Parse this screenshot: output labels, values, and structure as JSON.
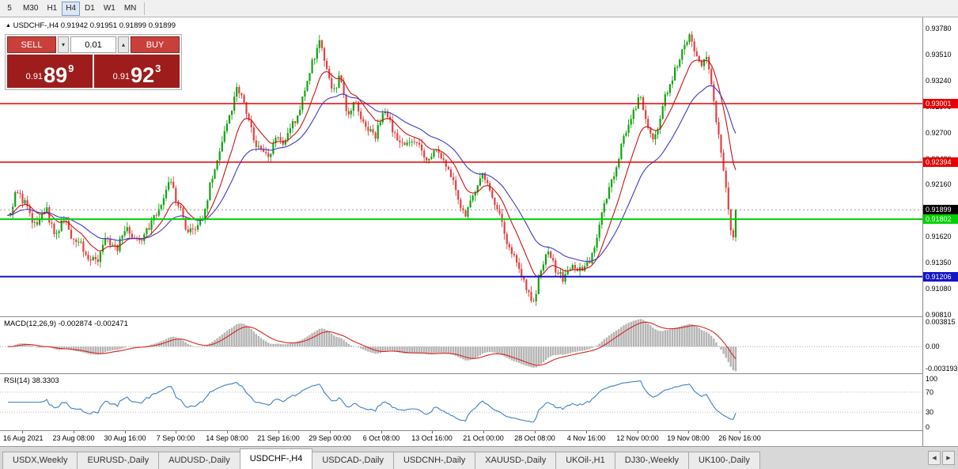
{
  "icons": {
    "collapse": "▲",
    "spinner_down": "▾",
    "spinner_up": "▴",
    "tabs_left": "◀",
    "tabs_right": "▶"
  },
  "toolbar": {
    "timeframes": [
      "5",
      "M30",
      "H1",
      "H4",
      "D1",
      "W1",
      "MN"
    ],
    "active_timeframe": "H4"
  },
  "chart": {
    "symbol_tf": "USDCHF-,H4",
    "ohlc": "0.91942 0.91951 0.91899 0.91899"
  },
  "trade_panel": {
    "sell_label": "SELL",
    "buy_label": "BUY",
    "lot_size": "0.01",
    "sell_price": {
      "prefix": "0.91",
      "big": "89",
      "sup": "9"
    },
    "buy_price": {
      "prefix": "0.91",
      "big": "92",
      "sup": "3"
    }
  },
  "price_axis": [
    "0.93780",
    "0.93510",
    "0.93240",
    "0.92970",
    "0.92700",
    "0.92430",
    "0.92160",
    "0.91890",
    "0.91620",
    "0.91350",
    "0.91080",
    "0.90810"
  ],
  "hlines": [
    {
      "label": "0.93001",
      "price": 0.93001,
      "color": "#e80000",
      "width": 1.5
    },
    {
      "label": "0.92394",
      "price": 0.92394,
      "color": "#e80000",
      "width": 1.5
    },
    {
      "label": "0.91802",
      "price": 0.91802,
      "color": "#00d200",
      "width": 2
    },
    {
      "label": "0.91206",
      "price": 0.91206,
      "color": "#1414c8",
      "width": 2
    }
  ],
  "current_price": {
    "label": "0.91899",
    "price": 0.91899,
    "color": "#000000"
  },
  "macd_panel": {
    "label": "MACD(12,26,9) -0.002874 -0.002471",
    "axis_labels": {
      "top": "0.003815",
      "zero": "0.00",
      "bottom": "-0.003193"
    }
  },
  "rsi_panel": {
    "label": "RSI(14) 38.3303",
    "axis_labels": [
      {
        "value": 100,
        "text": "100"
      },
      {
        "value": 70,
        "text": "70"
      },
      {
        "value": 30,
        "text": "30"
      },
      {
        "value": 0,
        "text": "0"
      }
    ],
    "levels": [
      70,
      30
    ]
  },
  "time_axis": [
    "16 Aug 2021",
    "23 Aug 08:00",
    "30 Aug 16:00",
    "7 Sep 00:00",
    "14 Sep 08:00",
    "21 Sep 16:00",
    "29 Sep 00:00",
    "6 Oct 08:00",
    "13 Oct 16:00",
    "21 Oct 00:00",
    "28 Oct 08:00",
    "4 Nov 16:00",
    "12 Nov 00:00",
    "19 Nov 08:00",
    "26 Nov 16:00"
  ],
  "tabs": [
    "USDX,Weekly",
    "EURUSD-,Daily",
    "AUDUSD-,Daily",
    "USDCHF-,H4",
    "USDCAD-,Daily",
    "USDCNH-,Daily",
    "XAUUSD-,Daily",
    "UKOil-,H1",
    "DJ30-,Weekly",
    "UK100-,Daily"
  ],
  "active_tab": "USDCHF-,H4",
  "chart_data": {
    "type": "candlestick",
    "symbol": "USDCHF-",
    "timeframe": "H4",
    "y_range": [
      0.90794,
      0.93895
    ],
    "candle_count": 300,
    "price_path": [
      [
        0.0,
        0.918
      ],
      [
        0.011,
        0.9208
      ],
      [
        0.025,
        0.9195
      ],
      [
        0.04,
        0.917
      ],
      [
        0.052,
        0.9192
      ],
      [
        0.065,
        0.916
      ],
      [
        0.076,
        0.9183
      ],
      [
        0.09,
        0.9155
      ],
      [
        0.098,
        0.916
      ],
      [
        0.11,
        0.914
      ],
      [
        0.122,
        0.9135
      ],
      [
        0.135,
        0.916
      ],
      [
        0.15,
        0.915
      ],
      [
        0.163,
        0.9172
      ],
      [
        0.17,
        0.9165
      ],
      [
        0.185,
        0.9158
      ],
      [
        0.2,
        0.9183
      ],
      [
        0.21,
        0.9195
      ],
      [
        0.22,
        0.9222
      ],
      [
        0.232,
        0.92
      ],
      [
        0.245,
        0.9172
      ],
      [
        0.258,
        0.9165
      ],
      [
        0.27,
        0.919
      ],
      [
        0.282,
        0.9228
      ],
      [
        0.295,
        0.9262
      ],
      [
        0.308,
        0.9295
      ],
      [
        0.316,
        0.9318
      ],
      [
        0.325,
        0.93
      ],
      [
        0.335,
        0.927
      ],
      [
        0.345,
        0.9252
      ],
      [
        0.358,
        0.9245
      ],
      [
        0.37,
        0.9268
      ],
      [
        0.38,
        0.926
      ],
      [
        0.39,
        0.9276
      ],
      [
        0.402,
        0.9295
      ],
      [
        0.415,
        0.9335
      ],
      [
        0.429,
        0.9367
      ],
      [
        0.437,
        0.9342
      ],
      [
        0.447,
        0.931
      ],
      [
        0.456,
        0.933
      ],
      [
        0.466,
        0.929
      ],
      [
        0.476,
        0.9303
      ],
      [
        0.49,
        0.9278
      ],
      [
        0.505,
        0.9268
      ],
      [
        0.518,
        0.9293
      ],
      [
        0.53,
        0.927
      ],
      [
        0.545,
        0.9256
      ],
      [
        0.56,
        0.9262
      ],
      [
        0.575,
        0.924
      ],
      [
        0.59,
        0.9252
      ],
      [
        0.605,
        0.9232
      ],
      [
        0.618,
        0.9205
      ],
      [
        0.628,
        0.9182
      ],
      [
        0.64,
        0.9208
      ],
      [
        0.652,
        0.9225
      ],
      [
        0.66,
        0.9215
      ],
      [
        0.672,
        0.919
      ],
      [
        0.685,
        0.916
      ],
      [
        0.698,
        0.9135
      ],
      [
        0.71,
        0.9112
      ],
      [
        0.722,
        0.9092
      ],
      [
        0.732,
        0.9128
      ],
      [
        0.742,
        0.915
      ],
      [
        0.752,
        0.9128
      ],
      [
        0.765,
        0.9118
      ],
      [
        0.778,
        0.9132
      ],
      [
        0.79,
        0.9126
      ],
      [
        0.8,
        0.9138
      ],
      [
        0.812,
        0.9172
      ],
      [
        0.822,
        0.92
      ],
      [
        0.832,
        0.9225
      ],
      [
        0.842,
        0.9252
      ],
      [
        0.855,
        0.9285
      ],
      [
        0.868,
        0.9308
      ],
      [
        0.878,
        0.9282
      ],
      [
        0.888,
        0.9258
      ],
      [
        0.898,
        0.9295
      ],
      [
        0.91,
        0.932
      ],
      [
        0.922,
        0.9345
      ],
      [
        0.936,
        0.9372
      ],
      [
        0.944,
        0.9352
      ],
      [
        0.952,
        0.9335
      ],
      [
        0.96,
        0.9348
      ],
      [
        0.968,
        0.931
      ],
      [
        0.976,
        0.9268
      ],
      [
        0.984,
        0.9228
      ],
      [
        0.989,
        0.9195
      ],
      [
        0.993,
        0.9168
      ],
      [
        0.996,
        0.916
      ],
      [
        1.0,
        0.91899
      ]
    ],
    "indicators": [
      {
        "type": "ema",
        "period": 12,
        "color": "#cc1111"
      },
      {
        "type": "ema",
        "period": 30,
        "color": "#3a3ac8"
      }
    ],
    "macd": {
      "fast": 12,
      "slow": 26,
      "signal": 9,
      "last": -0.002874,
      "last_signal": -0.002471
    },
    "rsi": {
      "period": 14,
      "last": 38.3303
    }
  },
  "colors": {
    "bull": "#12a312",
    "bear": "#e24141",
    "ma_fast": "#cc1111",
    "ma_slow": "#3a3ac8",
    "macd_hist": "#b4b4b4",
    "macd_signal": "#dd2222",
    "rsi_line": "#3f7fc4",
    "grid": "#b8b8b8"
  }
}
